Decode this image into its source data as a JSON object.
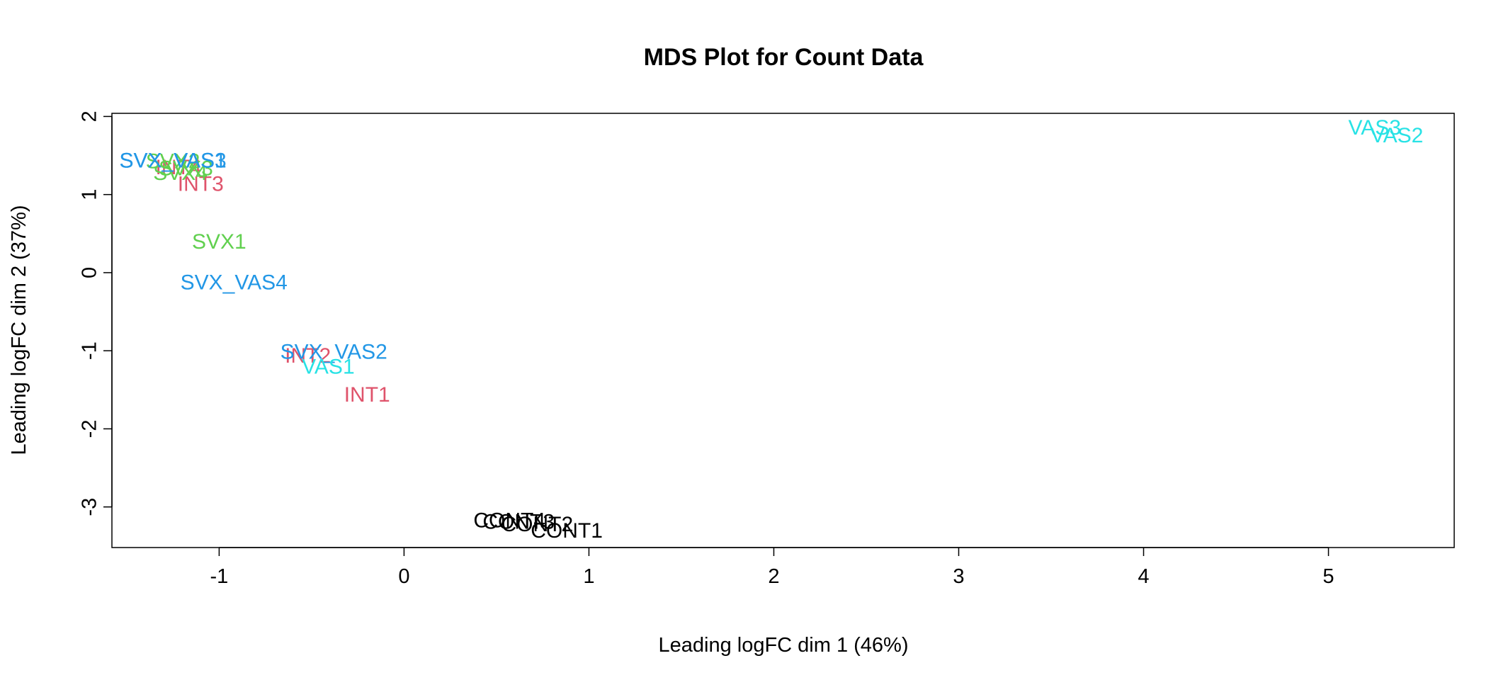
{
  "chart_data": {
    "type": "scatter",
    "title": "MDS Plot for Count Data",
    "xlabel": "Leading logFC dim 1 (46%)",
    "ylabel": "Leading logFC dim 2 (37%)",
    "xlim": [
      -1.58,
      5.68
    ],
    "ylim": [
      -3.52,
      2.04
    ],
    "xticks": [
      -1,
      0,
      1,
      2,
      3,
      4,
      5
    ],
    "yticks": [
      -3,
      -2,
      -1,
      0,
      1,
      2
    ],
    "grid": false,
    "legend": "none",
    "group_colors": {
      "CONT": "#000000",
      "INT": "#DF536B",
      "SVX": "#61D04F",
      "SVX_VAS": "#2297E6",
      "VAS": "#28E2E5"
    },
    "points": [
      {
        "label": "CONT1",
        "group": "CONT",
        "x": 0.88,
        "y": -3.32
      },
      {
        "label": "CONT2",
        "group": "CONT",
        "x": 0.72,
        "y": -3.24
      },
      {
        "label": "CONT3",
        "group": "CONT",
        "x": 0.62,
        "y": -3.21
      },
      {
        "label": "CONT4",
        "group": "CONT",
        "x": 0.57,
        "y": -3.19
      },
      {
        "label": "INT1",
        "group": "INT",
        "x": -0.2,
        "y": -1.58
      },
      {
        "label": "INT2",
        "group": "INT",
        "x": -0.52,
        "y": -1.08
      },
      {
        "label": "INT3",
        "group": "INT",
        "x": -1.1,
        "y": 1.12
      },
      {
        "label": "INT4",
        "group": "INT",
        "x": -1.22,
        "y": 1.33
      },
      {
        "label": "SVX1",
        "group": "SVX",
        "x": -1.0,
        "y": 0.38
      },
      {
        "label": "SVX2",
        "group": "SVX",
        "x": -1.25,
        "y": 1.41
      },
      {
        "label": "SVX3",
        "group": "SVX",
        "x": -1.18,
        "y": 1.32
      },
      {
        "label": "SVX4",
        "group": "SVX",
        "x": -1.21,
        "y": 1.26
      },
      {
        "label": "SVX_VAS1",
        "group": "SVX_VAS",
        "x": -1.25,
        "y": 1.42
      },
      {
        "label": "SVX_VAS2",
        "group": "SVX_VAS",
        "x": -0.38,
        "y": -1.03
      },
      {
        "label": "SVX_VAS3",
        "group": "SVX_VAS",
        "x": -1.25,
        "y": 1.42
      },
      {
        "label": "SVX_VAS4",
        "group": "SVX_VAS",
        "x": -0.92,
        "y": -0.14
      },
      {
        "label": "VAS1",
        "group": "VAS",
        "x": -0.41,
        "y": -1.22
      },
      {
        "label": "VAS2",
        "group": "VAS",
        "x": 5.37,
        "y": 1.74
      },
      {
        "label": "VAS3",
        "group": "VAS",
        "x": 5.25,
        "y": 1.84
      }
    ]
  }
}
